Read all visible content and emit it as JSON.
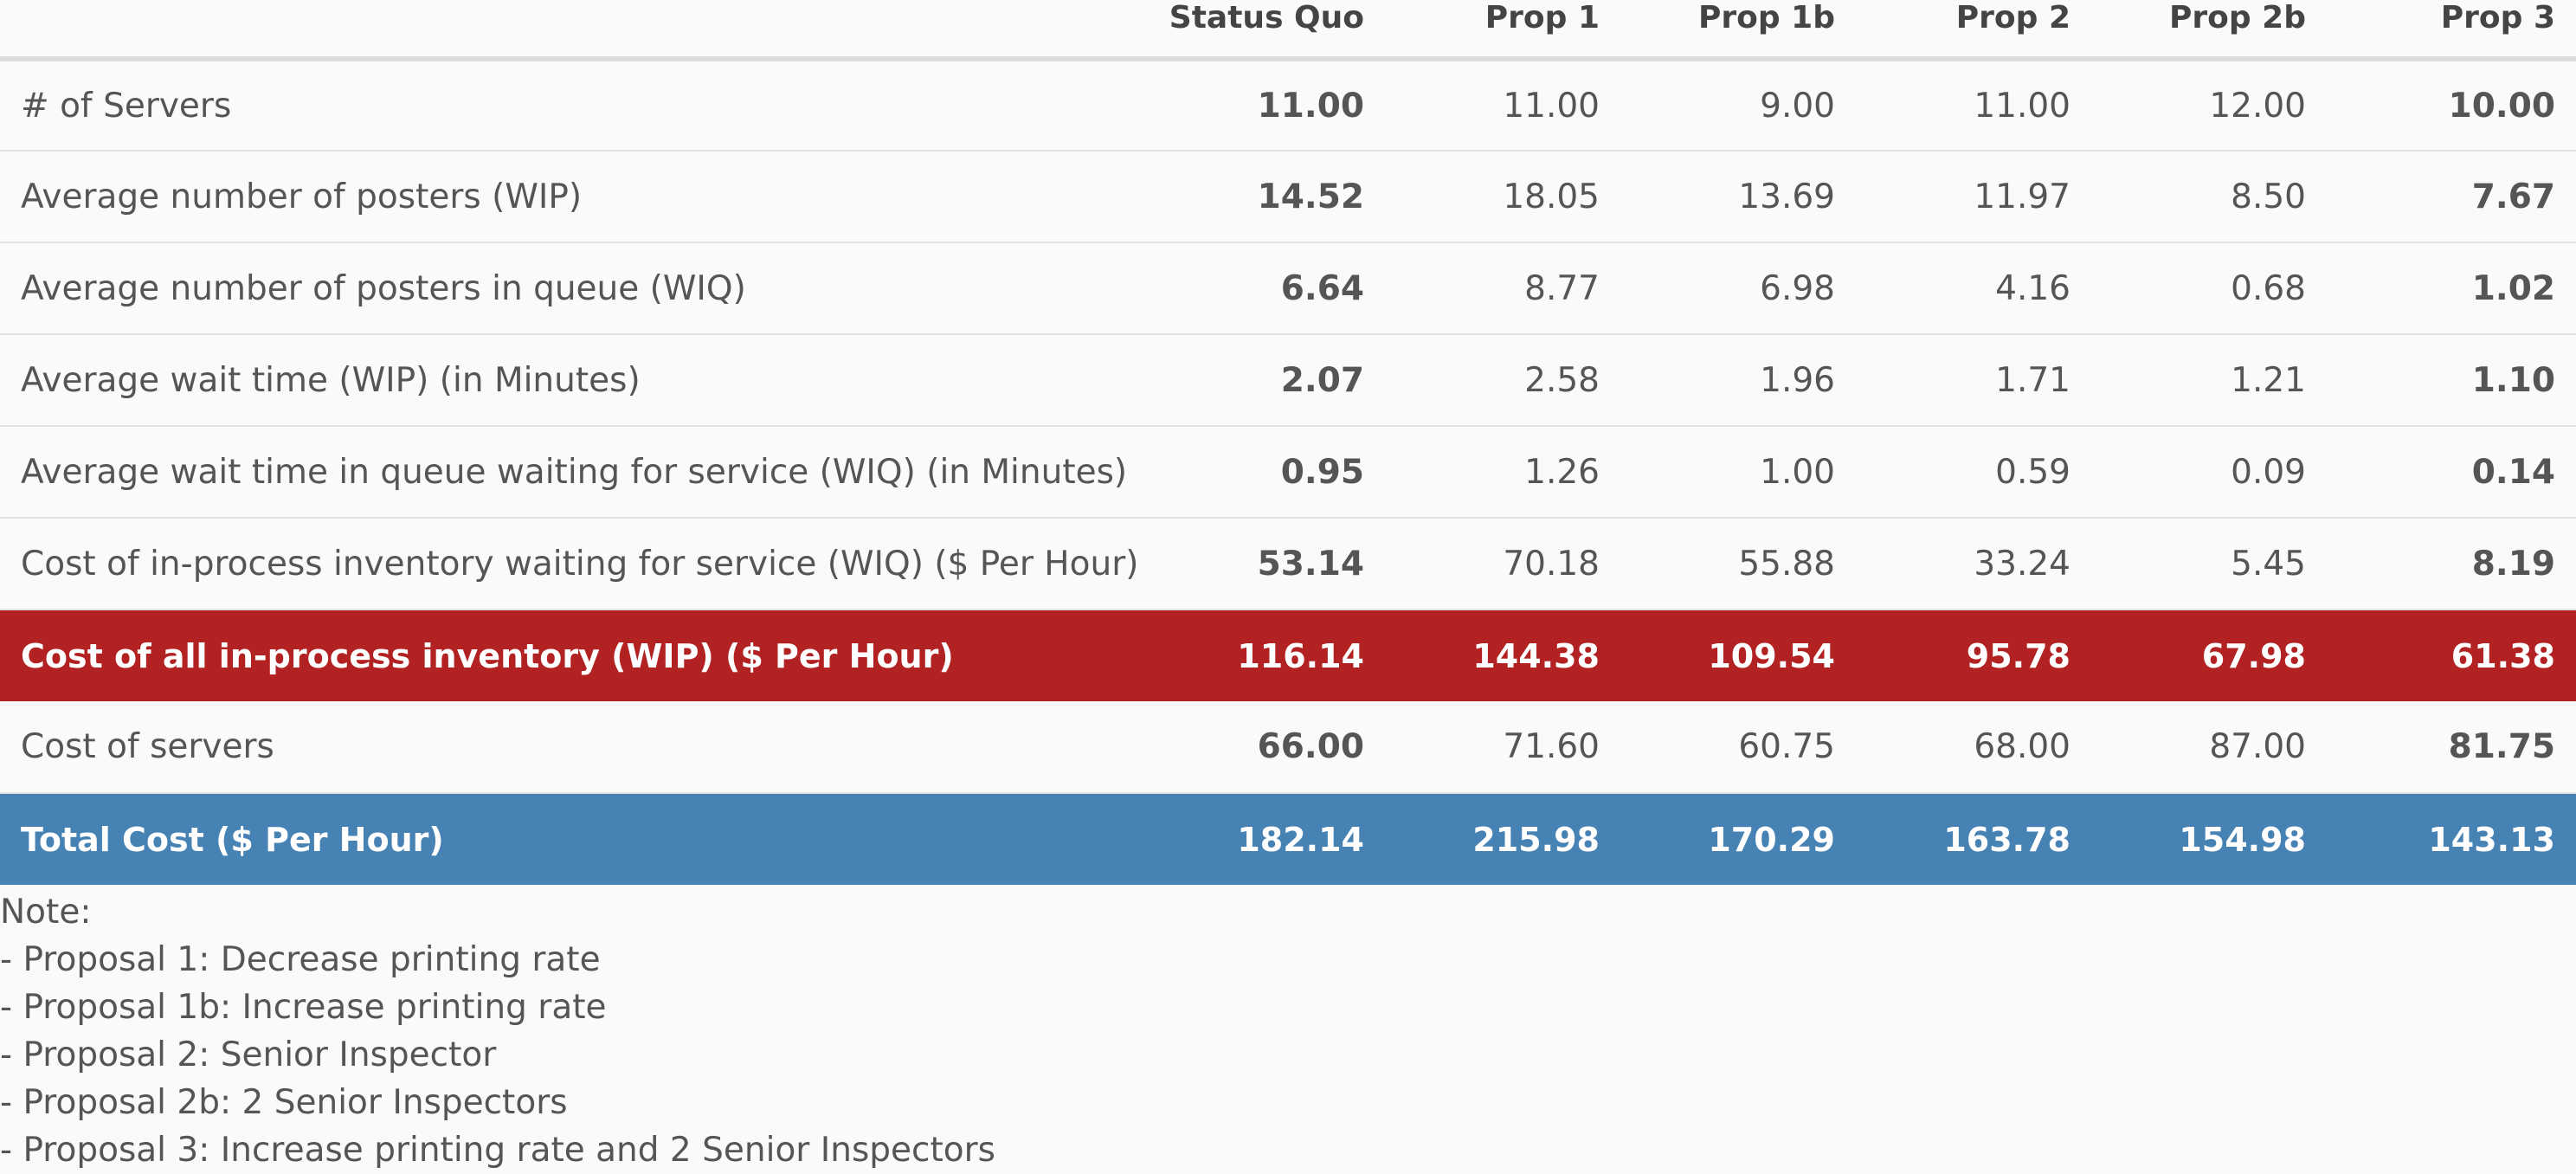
{
  "table": {
    "columns": [
      "",
      "Status Quo",
      "Prop 1",
      "Prop 1b",
      "Prop 2",
      "Prop 2b",
      "Prop 3"
    ],
    "rows": [
      {
        "label": "# of Servers",
        "values": [
          "11.00",
          "11.00",
          "9.00",
          "11.00",
          "12.00",
          "10.00"
        ]
      },
      {
        "label": "Average number of posters (WIP)",
        "values": [
          "14.52",
          "18.05",
          "13.69",
          "11.97",
          "8.50",
          "7.67"
        ]
      },
      {
        "label": "Average number of posters in queue (WIQ)",
        "values": [
          "6.64",
          "8.77",
          "6.98",
          "4.16",
          "0.68",
          "1.02"
        ]
      },
      {
        "label": "Average wait time (WIP) (in Minutes)",
        "values": [
          "2.07",
          "2.58",
          "1.96",
          "1.71",
          "1.21",
          "1.10"
        ]
      },
      {
        "label": "Average wait time in queue waiting for service (WIQ) (in Minutes)",
        "values": [
          "0.95",
          "1.26",
          "1.00",
          "0.59",
          "0.09",
          "0.14"
        ]
      },
      {
        "label": "Cost of in-process inventory waiting for service (WIQ) ($ Per Hour)",
        "values": [
          "53.14",
          "70.18",
          "55.88",
          "33.24",
          "5.45",
          "8.19"
        ]
      },
      {
        "label": "Cost of all in-process inventory (WIP) ($ Per Hour)",
        "values": [
          "116.14",
          "144.38",
          "109.54",
          "95.78",
          "67.98",
          "61.38"
        ]
      },
      {
        "label": "Cost of servers",
        "values": [
          "66.00",
          "71.60",
          "60.75",
          "68.00",
          "87.00",
          "81.75"
        ]
      },
      {
        "label": "Total Cost ($ Per Hour)",
        "values": [
          "182.14",
          "215.98",
          "170.29",
          "163.78",
          "154.98",
          "143.13"
        ]
      }
    ]
  },
  "colors": {
    "wip_row_bg": "#b22222",
    "total_row_bg": "#4682b4"
  },
  "notes": {
    "title": "Note:",
    "lines": [
      "- Proposal 1: Decrease printing rate",
      "- Proposal 1b: Increase printing rate",
      "- Proposal 2: Senior Inspector",
      "- Proposal 2b: 2 Senior Inspectors",
      "- Proposal 3: Increase printing rate and 2 Senior Inspectors"
    ]
  }
}
